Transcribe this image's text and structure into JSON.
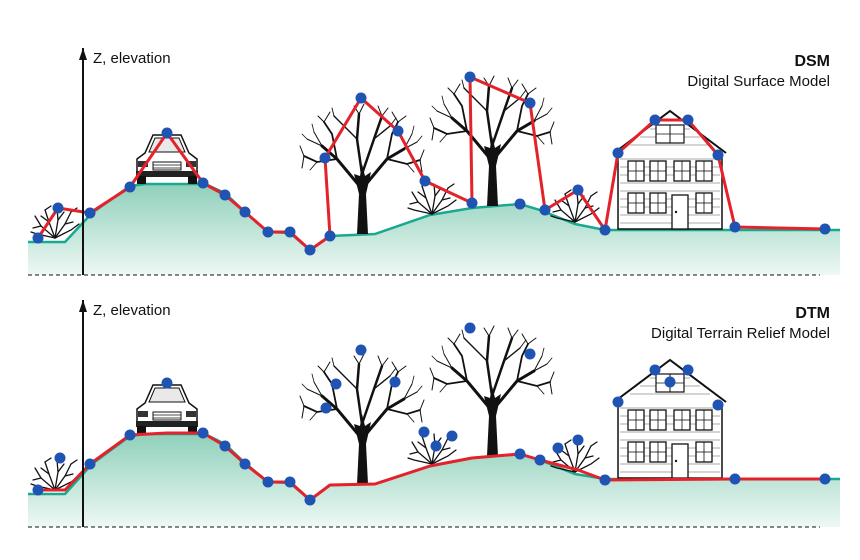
{
  "colors": {
    "ground_fill": "#b7e0d2",
    "ground_line": "#1aa88f",
    "model_line": "#e3222b",
    "point": "#1f54b3",
    "dark": "#1a1a1a"
  },
  "panels": [
    {
      "id": "dsm",
      "axis_label": "Z, elevation",
      "title": "DSM",
      "subtitle": "Digital Surface Model"
    },
    {
      "id": "dtm",
      "axis_label": "Z, elevation",
      "title": "DTM",
      "subtitle": "Digital Terrain Relief Model"
    }
  ],
  "icons": [
    "car-icon",
    "tree-icon",
    "bush-icon",
    "house-icon",
    "axis-arrow-icon"
  ]
}
